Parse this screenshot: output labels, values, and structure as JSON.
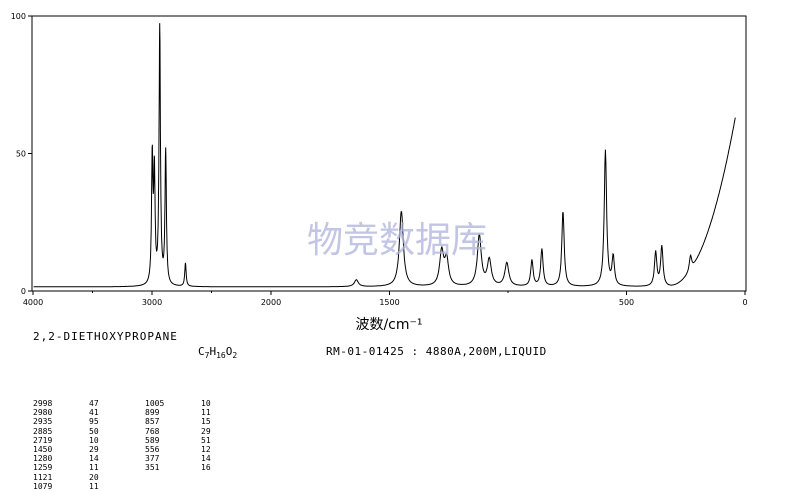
{
  "compound_name": "2,2-DIETHOXYPROPANE",
  "formula": {
    "c": "C",
    "c_sub": "7",
    "h": "H",
    "h_sub": "16",
    "o": "O",
    "o_sub": "2"
  },
  "record_info": "RM-01-01425 : 4880A,200M,LIQUID",
  "watermark": "物竞数据库",
  "chart_data": {
    "type": "line",
    "title": "",
    "xlabel": "波数/cm⁻¹",
    "ylabel": "",
    "xlim": [
      4000,
      0
    ],
    "ylim": [
      0,
      100
    ],
    "x_ticks": [
      4000,
      3000,
      2000,
      1500,
      500,
      0
    ],
    "x_tick_labels": [
      "4000",
      "3000",
      "2000",
      "1500",
      "500",
      "0"
    ],
    "y_ticks": [
      0,
      50,
      100
    ],
    "y_tick_labels": [
      "0",
      "50",
      "100"
    ],
    "grid": false,
    "baseline": 1.5,
    "series": [
      {
        "peaks": [
          {
            "x": 2998,
            "y": 47
          },
          {
            "x": 2980,
            "y": 41
          },
          {
            "x": 2935,
            "y": 95
          },
          {
            "x": 2885,
            "y": 50
          },
          {
            "x": 2719,
            "y": 10
          },
          {
            "x": 1640,
            "y": 4
          },
          {
            "x": 1450,
            "y": 29
          },
          {
            "x": 1280,
            "y": 14
          },
          {
            "x": 1259,
            "y": 11
          },
          {
            "x": 1121,
            "y": 20
          },
          {
            "x": 1079,
            "y": 11
          },
          {
            "x": 1005,
            "y": 10
          },
          {
            "x": 899,
            "y": 11
          },
          {
            "x": 857,
            "y": 15
          },
          {
            "x": 768,
            "y": 29
          },
          {
            "x": 589,
            "y": 51
          },
          {
            "x": 556,
            "y": 12
          },
          {
            "x": 377,
            "y": 14
          },
          {
            "x": 351,
            "y": 16
          },
          {
            "x": 230,
            "y": 7
          }
        ]
      }
    ]
  },
  "peak_table": [
    {
      "wn": "2998",
      "i": "47"
    },
    {
      "wn": "2980",
      "i": "41"
    },
    {
      "wn": "2935",
      "i": "95"
    },
    {
      "wn": "2885",
      "i": "50"
    },
    {
      "wn": "2719",
      "i": "10"
    },
    {
      "wn": "1450",
      "i": "29"
    },
    {
      "wn": "1280",
      "i": "14"
    },
    {
      "wn": "1259",
      "i": "11"
    },
    {
      "wn": "1121",
      "i": "20"
    },
    {
      "wn": "1079",
      "i": "11"
    },
    {
      "wn": "1005",
      "i": "10"
    },
    {
      "wn": "899",
      "i": "11"
    },
    {
      "wn": "857",
      "i": "15"
    },
    {
      "wn": "768",
      "i": "29"
    },
    {
      "wn": "589",
      "i": "51"
    },
    {
      "wn": "556",
      "i": "12"
    },
    {
      "wn": "377",
      "i": "14"
    },
    {
      "wn": "351",
      "i": "16"
    }
  ]
}
